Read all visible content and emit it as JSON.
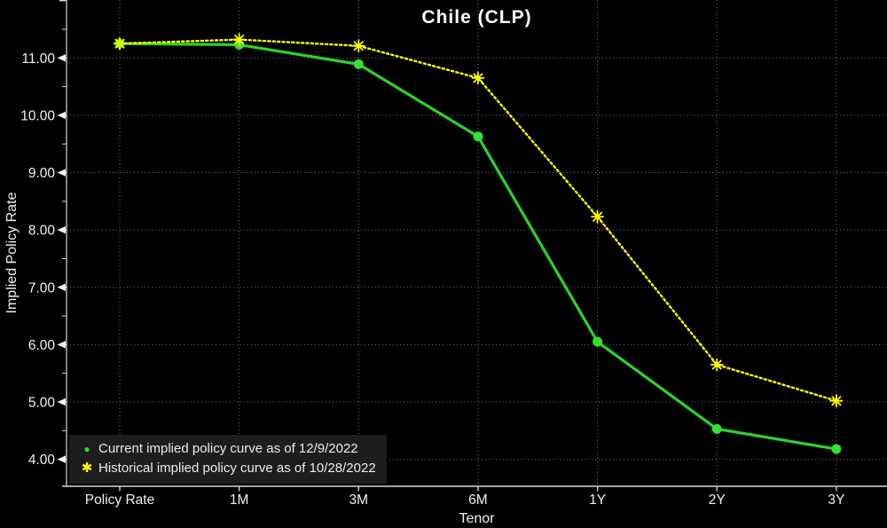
{
  "title": "Chile (CLP)",
  "axis": {
    "y_title": "Implied Policy Rate",
    "x_title": "Tenor"
  },
  "icons": {
    "current_marker_icon": "●",
    "historical_marker_icon": "✱"
  },
  "colors": {
    "background": "#000000",
    "text": "#f0f0f0",
    "grid": "#707070",
    "axis_line": "#d8d8d8",
    "current_series": "#2bd32b",
    "current_marker": "#35e035",
    "historical_series": "#ffff00",
    "legend_background": "#1d1d1d"
  },
  "chart_data": {
    "type": "line",
    "title": "Chile (CLP)",
    "xlabel": "Tenor",
    "ylabel": "Implied Policy Rate",
    "categories": [
      "Policy Rate",
      "1M",
      "3M",
      "6M",
      "1Y",
      "2Y",
      "3Y"
    ],
    "series": [
      {
        "name": "Current implied policy curve as of 12/9/2022",
        "color": "#2bd32b",
        "style": "solid",
        "marker": "circle",
        "values": [
          11.25,
          11.23,
          10.89,
          9.63,
          6.05,
          4.53,
          4.18
        ]
      },
      {
        "name": "Historical implied policy curve as of 10/28/2022",
        "color": "#ffff00",
        "style": "dotted",
        "marker": "asterisk",
        "values": [
          11.25,
          11.32,
          11.21,
          10.65,
          8.23,
          5.65,
          5.02
        ]
      }
    ],
    "ylim": [
      3.53,
      12.01
    ],
    "yticks": [
      4,
      5,
      6,
      7,
      8,
      9,
      10,
      11
    ],
    "ytick_labels": [
      "4.00",
      "5.00",
      "6.00",
      "7.00",
      "8.00",
      "9.00",
      "10.00",
      "11.00"
    ],
    "minor_tick_step": 0.5,
    "grid": true,
    "legend_position": "bottom-left"
  }
}
